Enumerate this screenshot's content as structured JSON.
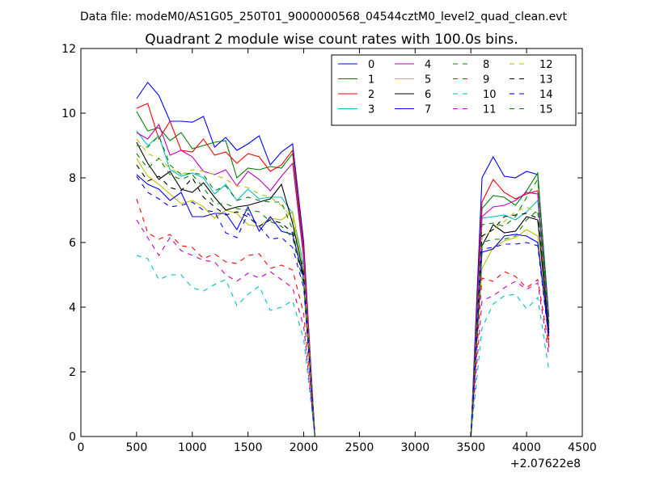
{
  "header": {
    "data_file": "Data file: modeM0/AS1G05_250T01_9000000568_04544cztM0_level2_quad_clean.evt"
  },
  "chart_data": {
    "type": "line",
    "title": "Quadrant 2 module wise count rates with 100.0s bins.",
    "xlabel": "",
    "ylabel": "",
    "x_offset_label": "+2.07622e8",
    "xlim": [
      0,
      4500
    ],
    "ylim": [
      0,
      12
    ],
    "xticks": [
      0,
      500,
      1000,
      1500,
      2000,
      2500,
      3000,
      3500,
      4000,
      4500
    ],
    "yticks": [
      0,
      2,
      4,
      6,
      8,
      10,
      12
    ],
    "grid": false,
    "legend_position": "top-right",
    "x": [
      500,
      600,
      700,
      800,
      900,
      1000,
      1100,
      1200,
      1300,
      1400,
      1500,
      1600,
      1700,
      1800,
      1900,
      2000,
      2100,
      2200,
      2300,
      2400,
      2500,
      2600,
      2700,
      2800,
      2900,
      3000,
      3100,
      3200,
      3300,
      3400,
      3500,
      3600,
      3700,
      3800,
      3900,
      4000,
      4100,
      4200
    ],
    "series": [
      {
        "name": "0",
        "color": "#0000ff",
        "dash": "solid",
        "values": [
          10.45,
          10.95,
          10.55,
          9.75,
          9.75,
          9.72,
          9.9,
          8.95,
          9.25,
          8.85,
          9.05,
          9.3,
          8.4,
          8.8,
          9.05,
          6.0,
          0,
          0,
          0,
          0,
          0,
          0,
          0,
          0,
          0,
          0,
          0,
          0,
          0,
          0,
          0,
          8.0,
          8.65,
          8.05,
          8.0,
          8.2,
          8.1,
          3.7
        ]
      },
      {
        "name": "1",
        "color": "#008000",
        "dash": "solid",
        "values": [
          10.05,
          9.45,
          9.55,
          9.15,
          9.4,
          8.9,
          9.0,
          9.1,
          9.15,
          8.0,
          8.3,
          8.25,
          8.35,
          8.3,
          8.75,
          5.6,
          0,
          0,
          0,
          0,
          0,
          0,
          0,
          0,
          0,
          0,
          0,
          0,
          0,
          0,
          0,
          7.05,
          7.45,
          7.4,
          7.15,
          7.6,
          8.15,
          3.5
        ]
      },
      {
        "name": "2",
        "color": "#ff0000",
        "dash": "solid",
        "values": [
          10.15,
          10.3,
          9.2,
          9.75,
          8.85,
          8.8,
          9.2,
          8.7,
          8.8,
          8.45,
          8.75,
          8.65,
          8.2,
          8.4,
          8.85,
          5.8,
          0,
          0,
          0,
          0,
          0,
          0,
          0,
          0,
          0,
          0,
          0,
          0,
          0,
          0,
          0,
          7.25,
          7.95,
          7.55,
          7.35,
          7.5,
          7.6,
          2.75
        ]
      },
      {
        "name": "3",
        "color": "#00bfbf",
        "dash": "solid",
        "values": [
          9.45,
          9.0,
          9.3,
          8.25,
          8.05,
          8.15,
          8.0,
          7.5,
          7.8,
          7.3,
          7.65,
          7.35,
          7.4,
          7.4,
          6.9,
          5.3,
          0,
          0,
          0,
          0,
          0,
          0,
          0,
          0,
          0,
          0,
          0,
          0,
          0,
          0,
          0,
          6.75,
          6.8,
          6.85,
          6.7,
          6.95,
          7.3,
          3.5
        ]
      },
      {
        "name": "4",
        "color": "#bf00bf",
        "dash": "solid",
        "values": [
          9.4,
          9.2,
          9.65,
          8.7,
          8.85,
          8.65,
          8.2,
          8.1,
          8.25,
          7.75,
          8.2,
          7.95,
          7.6,
          8.05,
          8.45,
          5.5,
          0,
          0,
          0,
          0,
          0,
          0,
          0,
          0,
          0,
          0,
          0,
          0,
          0,
          0,
          0,
          6.8,
          7.1,
          7.15,
          7.3,
          7.55,
          7.5,
          3.4
        ]
      },
      {
        "name": "5",
        "color": "#bfbf00",
        "dash": "solid",
        "values": [
          8.6,
          8.05,
          7.8,
          7.5,
          7.2,
          7.3,
          7.1,
          6.75,
          7.0,
          6.9,
          6.55,
          6.5,
          6.75,
          6.7,
          6.95,
          5.0,
          0,
          0,
          0,
          0,
          0,
          0,
          0,
          0,
          0,
          0,
          0,
          0,
          0,
          0,
          0,
          5.2,
          5.85,
          6.05,
          6.15,
          6.4,
          6.2,
          3.0
        ]
      },
      {
        "name": "6",
        "color": "#000000",
        "dash": "solid",
        "values": [
          9.1,
          8.45,
          7.95,
          8.2,
          7.65,
          7.55,
          7.85,
          7.4,
          7.0,
          7.1,
          7.15,
          7.25,
          7.35,
          7.8,
          6.6,
          5.0,
          0,
          0,
          0,
          0,
          0,
          0,
          0,
          0,
          0,
          0,
          0,
          0,
          0,
          0,
          0,
          5.9,
          6.55,
          6.3,
          6.35,
          6.8,
          6.7,
          3.2
        ]
      },
      {
        "name": "7",
        "color": "#0000ff",
        "dash": "solid",
        "values": [
          8.1,
          7.8,
          7.65,
          7.3,
          7.55,
          6.8,
          6.8,
          6.9,
          6.9,
          6.4,
          7.1,
          6.35,
          6.8,
          6.35,
          6.25,
          4.9,
          0,
          0,
          0,
          0,
          0,
          0,
          0,
          0,
          0,
          0,
          0,
          0,
          0,
          0,
          0,
          5.7,
          5.8,
          6.2,
          6.25,
          6.2,
          6.0,
          3.1
        ]
      },
      {
        "name": "8",
        "color": "#008000",
        "dash": "dashed",
        "values": [
          9.0,
          8.95,
          9.3,
          8.4,
          8.1,
          8.15,
          8.1,
          7.6,
          7.75,
          7.3,
          7.4,
          7.3,
          7.25,
          7.25,
          6.4,
          5.2,
          0,
          0,
          0,
          0,
          0,
          0,
          0,
          0,
          0,
          0,
          0,
          0,
          0,
          0,
          0,
          6.55,
          6.6,
          6.5,
          6.8,
          7.4,
          7.95,
          3.3
        ]
      },
      {
        "name": "9",
        "color": "#ff0000",
        "dash": "dashed",
        "values": [
          7.35,
          6.3,
          6.1,
          6.25,
          5.9,
          5.85,
          5.5,
          5.65,
          5.4,
          5.35,
          5.6,
          5.65,
          5.2,
          5.3,
          5.15,
          3.8,
          0,
          0,
          0,
          0,
          0,
          0,
          0,
          0,
          0,
          0,
          0,
          0,
          0,
          0,
          0,
          4.9,
          4.8,
          5.1,
          4.95,
          4.6,
          4.85,
          2.8
        ]
      },
      {
        "name": "10",
        "color": "#00bfbf",
        "dash": "dashed",
        "values": [
          5.6,
          5.5,
          4.85,
          5.0,
          5.0,
          4.6,
          4.5,
          4.7,
          4.85,
          4.05,
          4.4,
          4.65,
          3.9,
          4.0,
          4.2,
          3.0,
          0,
          0,
          0,
          0,
          0,
          0,
          0,
          0,
          0,
          0,
          0,
          0,
          0,
          0,
          0,
          3.35,
          4.1,
          4.35,
          4.4,
          3.95,
          4.3,
          2.05
        ]
      },
      {
        "name": "11",
        "color": "#bf00bf",
        "dash": "dashed",
        "values": [
          6.7,
          6.15,
          5.6,
          6.15,
          5.75,
          5.6,
          5.45,
          5.4,
          5.0,
          4.8,
          5.05,
          4.9,
          5.1,
          4.85,
          4.6,
          3.4,
          0,
          0,
          0,
          0,
          0,
          0,
          0,
          0,
          0,
          0,
          0,
          0,
          0,
          0,
          0,
          4.2,
          4.35,
          4.6,
          4.8,
          4.55,
          4.75,
          2.5
        ]
      },
      {
        "name": "12",
        "color": "#bfbf00",
        "dash": "dashed",
        "values": [
          9.2,
          8.75,
          8.6,
          8.3,
          8.1,
          8.25,
          8.2,
          8.1,
          7.95,
          7.75,
          7.7,
          7.5,
          7.4,
          7.15,
          6.75,
          5.1,
          0,
          0,
          0,
          0,
          0,
          0,
          0,
          0,
          0,
          0,
          0,
          0,
          0,
          0,
          0,
          6.15,
          6.4,
          6.65,
          6.95,
          7.1,
          6.9,
          3.6
        ]
      },
      {
        "name": "13",
        "color": "#000000",
        "dash": "dashed",
        "values": [
          8.4,
          7.9,
          8.05,
          7.7,
          7.6,
          8.0,
          7.4,
          7.1,
          6.85,
          6.95,
          6.8,
          6.5,
          6.7,
          6.6,
          6.3,
          4.8,
          0,
          0,
          0,
          0,
          0,
          0,
          0,
          0,
          0,
          0,
          0,
          0,
          0,
          0,
          0,
          6.2,
          6.4,
          6.8,
          6.85,
          6.9,
          6.75,
          3.3
        ]
      },
      {
        "name": "14",
        "color": "#0000ff",
        "dash": "dashed",
        "values": [
          8.05,
          7.55,
          7.35,
          7.1,
          7.15,
          7.25,
          7.0,
          6.95,
          6.3,
          6.15,
          6.9,
          6.5,
          6.1,
          6.15,
          5.85,
          4.6,
          0,
          0,
          0,
          0,
          0,
          0,
          0,
          0,
          0,
          0,
          0,
          0,
          0,
          0,
          0,
          5.8,
          5.85,
          5.95,
          5.95,
          6.0,
          5.9,
          3.0
        ]
      },
      {
        "name": "15",
        "color": "#008000",
        "dash": "dashed",
        "values": [
          8.75,
          8.3,
          8.6,
          8.1,
          7.95,
          8.1,
          7.7,
          7.2,
          7.2,
          7.05,
          7.0,
          6.95,
          6.65,
          6.5,
          6.15,
          4.7,
          0,
          0,
          0,
          0,
          0,
          0,
          0,
          0,
          0,
          0,
          0,
          0,
          0,
          0,
          0,
          6.0,
          6.1,
          6.1,
          6.2,
          6.7,
          7.0,
          3.5
        ]
      }
    ]
  }
}
